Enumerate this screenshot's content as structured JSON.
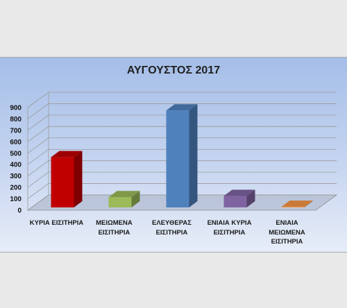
{
  "chart_data": {
    "type": "bar",
    "3d": true,
    "title": "ΑΥΓΟΥΣΤΟΣ 2017",
    "categories": [
      "ΚΥΡΙΑ ΕΙΣΙΤΗΡΙΑ",
      "ΜΕΙΩΜΕΝΑ ΕΙΣΙΤΗΡΙΑ",
      "ΕΛΕΥΘΕΡΑΣ ΕΙΣΙΤΗΡΙΑ",
      "ΕΝΙΑΙΑ ΚΥΡΙΑ ΕΙΣΙΤΗΡΙΑ",
      "ΕΝΙΑΙΑ ΜΕΙΩΜΕΝΑ ΕΙΣΙΤΗΡΙΑ"
    ],
    "values": [
      440,
      90,
      850,
      100,
      5
    ],
    "bar_colors": [
      "#c00000",
      "#9bbb59",
      "#4f81bd",
      "#8064a2",
      "#f79646"
    ],
    "ylim": [
      0,
      900
    ],
    "yticks": [
      0,
      100,
      200,
      300,
      400,
      500,
      600,
      700,
      800,
      900
    ],
    "grid": true
  }
}
